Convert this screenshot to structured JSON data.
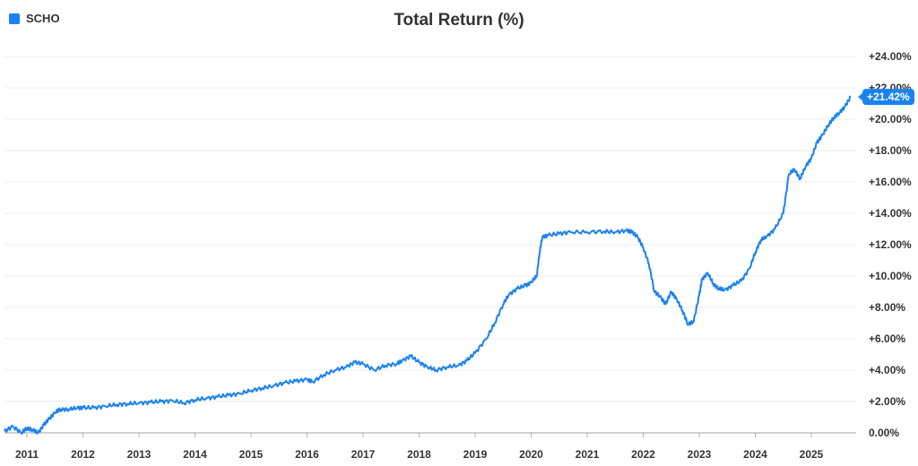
{
  "legend": {
    "label": "SCHO",
    "color": "#1a82f0"
  },
  "title": "Total Return (%)",
  "last_value_label": "+21.42%",
  "chart_data": {
    "type": "line",
    "title": "Total Return (%)",
    "xlabel": "",
    "ylabel": "",
    "ylim": [
      0,
      24
    ],
    "xlim": [
      2010.6,
      2025.8
    ],
    "grid": true,
    "legend_position": "top-left",
    "yticks": [
      0,
      2,
      4,
      6,
      8,
      10,
      12,
      14,
      16,
      18,
      20,
      22,
      24
    ],
    "ytick_labels": [
      "0.00%",
      "+2.00%",
      "+4.00%",
      "+6.00%",
      "+8.00%",
      "+10.00%",
      "+12.00%",
      "+14.00%",
      "+16.00%",
      "+18.00%",
      "+20.00%",
      "+22.00%",
      "+24.00%"
    ],
    "xticks": [
      2011,
      2012,
      2013,
      2014,
      2015,
      2016,
      2017,
      2018,
      2019,
      2020,
      2021,
      2022,
      2023,
      2024,
      2025
    ],
    "xtick_labels": [
      "2011",
      "2012",
      "2013",
      "2014",
      "2015",
      "2016",
      "2017",
      "2018",
      "2019",
      "2020",
      "2021",
      "2022",
      "2023",
      "2024",
      "2025"
    ],
    "series": [
      {
        "name": "SCHO",
        "color": "#1a82f0",
        "x": [
          2010.6,
          2010.75,
          2010.9,
          2011.0,
          2011.1,
          2011.2,
          2011.3,
          2011.4,
          2011.5,
          2011.6,
          2011.75,
          2011.9,
          2012.0,
          2012.2,
          2012.4,
          2012.6,
          2012.8,
          2013.0,
          2013.2,
          2013.4,
          2013.6,
          2013.8,
          2014.0,
          2014.2,
          2014.4,
          2014.6,
          2014.8,
          2015.0,
          2015.2,
          2015.4,
          2015.6,
          2015.8,
          2016.0,
          2016.1,
          2016.3,
          2016.5,
          2016.7,
          2016.85,
          2017.0,
          2017.2,
          2017.4,
          2017.6,
          2017.7,
          2017.85,
          2018.0,
          2018.15,
          2018.3,
          2018.5,
          2018.7,
          2018.85,
          2019.0,
          2019.2,
          2019.35,
          2019.5,
          2019.6,
          2019.75,
          2019.9,
          2020.0,
          2020.1,
          2020.15,
          2020.2,
          2020.3,
          2020.5,
          2020.7,
          2021.0,
          2021.3,
          2021.5,
          2021.7,
          2021.8,
          2021.9,
          2022.0,
          2022.1,
          2022.2,
          2022.3,
          2022.4,
          2022.5,
          2022.6,
          2022.7,
          2022.8,
          2022.9,
          2023.0,
          2023.05,
          2023.15,
          2023.25,
          2023.35,
          2023.45,
          2023.6,
          2023.75,
          2023.9,
          2024.0,
          2024.1,
          2024.2,
          2024.35,
          2024.5,
          2024.6,
          2024.7,
          2024.8,
          2024.9,
          2025.0,
          2025.1,
          2025.2,
          2025.3,
          2025.4,
          2025.5,
          2025.6,
          2025.7
        ],
        "y": [
          0.1,
          0.4,
          0.0,
          0.3,
          0.2,
          0.0,
          0.5,
          0.9,
          1.3,
          1.5,
          1.5,
          1.6,
          1.6,
          1.6,
          1.7,
          1.8,
          1.85,
          1.9,
          1.95,
          2.0,
          2.05,
          1.9,
          2.1,
          2.2,
          2.3,
          2.4,
          2.5,
          2.7,
          2.85,
          3.0,
          3.2,
          3.3,
          3.4,
          3.25,
          3.7,
          4.0,
          4.2,
          4.5,
          4.4,
          4.0,
          4.3,
          4.4,
          4.6,
          4.9,
          4.5,
          4.2,
          4.0,
          4.2,
          4.3,
          4.6,
          5.1,
          6.0,
          7.0,
          8.2,
          8.8,
          9.2,
          9.4,
          9.6,
          10.0,
          11.5,
          12.5,
          12.6,
          12.7,
          12.8,
          12.8,
          12.85,
          12.8,
          12.9,
          12.8,
          12.5,
          11.8,
          10.8,
          9.0,
          8.7,
          8.2,
          9.0,
          8.5,
          7.8,
          6.9,
          7.1,
          8.8,
          9.8,
          10.2,
          9.5,
          9.2,
          9.1,
          9.4,
          9.7,
          10.5,
          11.5,
          12.3,
          12.5,
          13.0,
          14.0,
          16.5,
          16.8,
          16.2,
          17.0,
          17.5,
          18.5,
          19.0,
          19.6,
          20.1,
          20.4,
          20.8,
          21.42
        ]
      }
    ]
  }
}
